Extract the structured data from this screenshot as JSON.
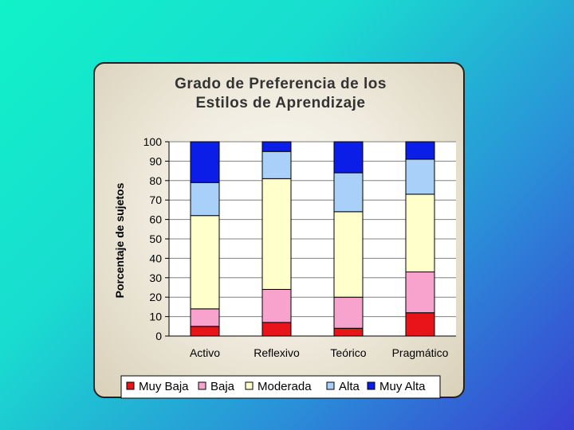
{
  "chart_data": {
    "type": "bar",
    "stacked": true,
    "title_lines": [
      "Grado de Preferencia de los",
      "Estilos de Aprendizaje"
    ],
    "xlabel": "",
    "ylabel": "Porcentaje de sujetos",
    "ylim": [
      0,
      100
    ],
    "yticks": [
      0,
      10,
      20,
      30,
      40,
      50,
      60,
      70,
      80,
      90,
      100
    ],
    "categories": [
      "Activo",
      "Reflexivo",
      "Teórico",
      "Pragmático"
    ],
    "series": [
      {
        "name": "Muy Baja",
        "color": "#e8141a",
        "values": [
          5,
          7,
          4,
          12
        ]
      },
      {
        "name": "Baja",
        "color": "#f7a3cd",
        "values": [
          9,
          17,
          16,
          21
        ]
      },
      {
        "name": "Moderada",
        "color": "#ffffcc",
        "values": [
          48,
          57,
          44,
          40
        ]
      },
      {
        "name": "Alta",
        "color": "#a8d0f8",
        "values": [
          17,
          14,
          20,
          18
        ]
      },
      {
        "name": "Muy Alta",
        "color": "#0a1ee8",
        "values": [
          21,
          5,
          16,
          9
        ]
      }
    ],
    "grid": true,
    "legend_position": "bottom"
  }
}
